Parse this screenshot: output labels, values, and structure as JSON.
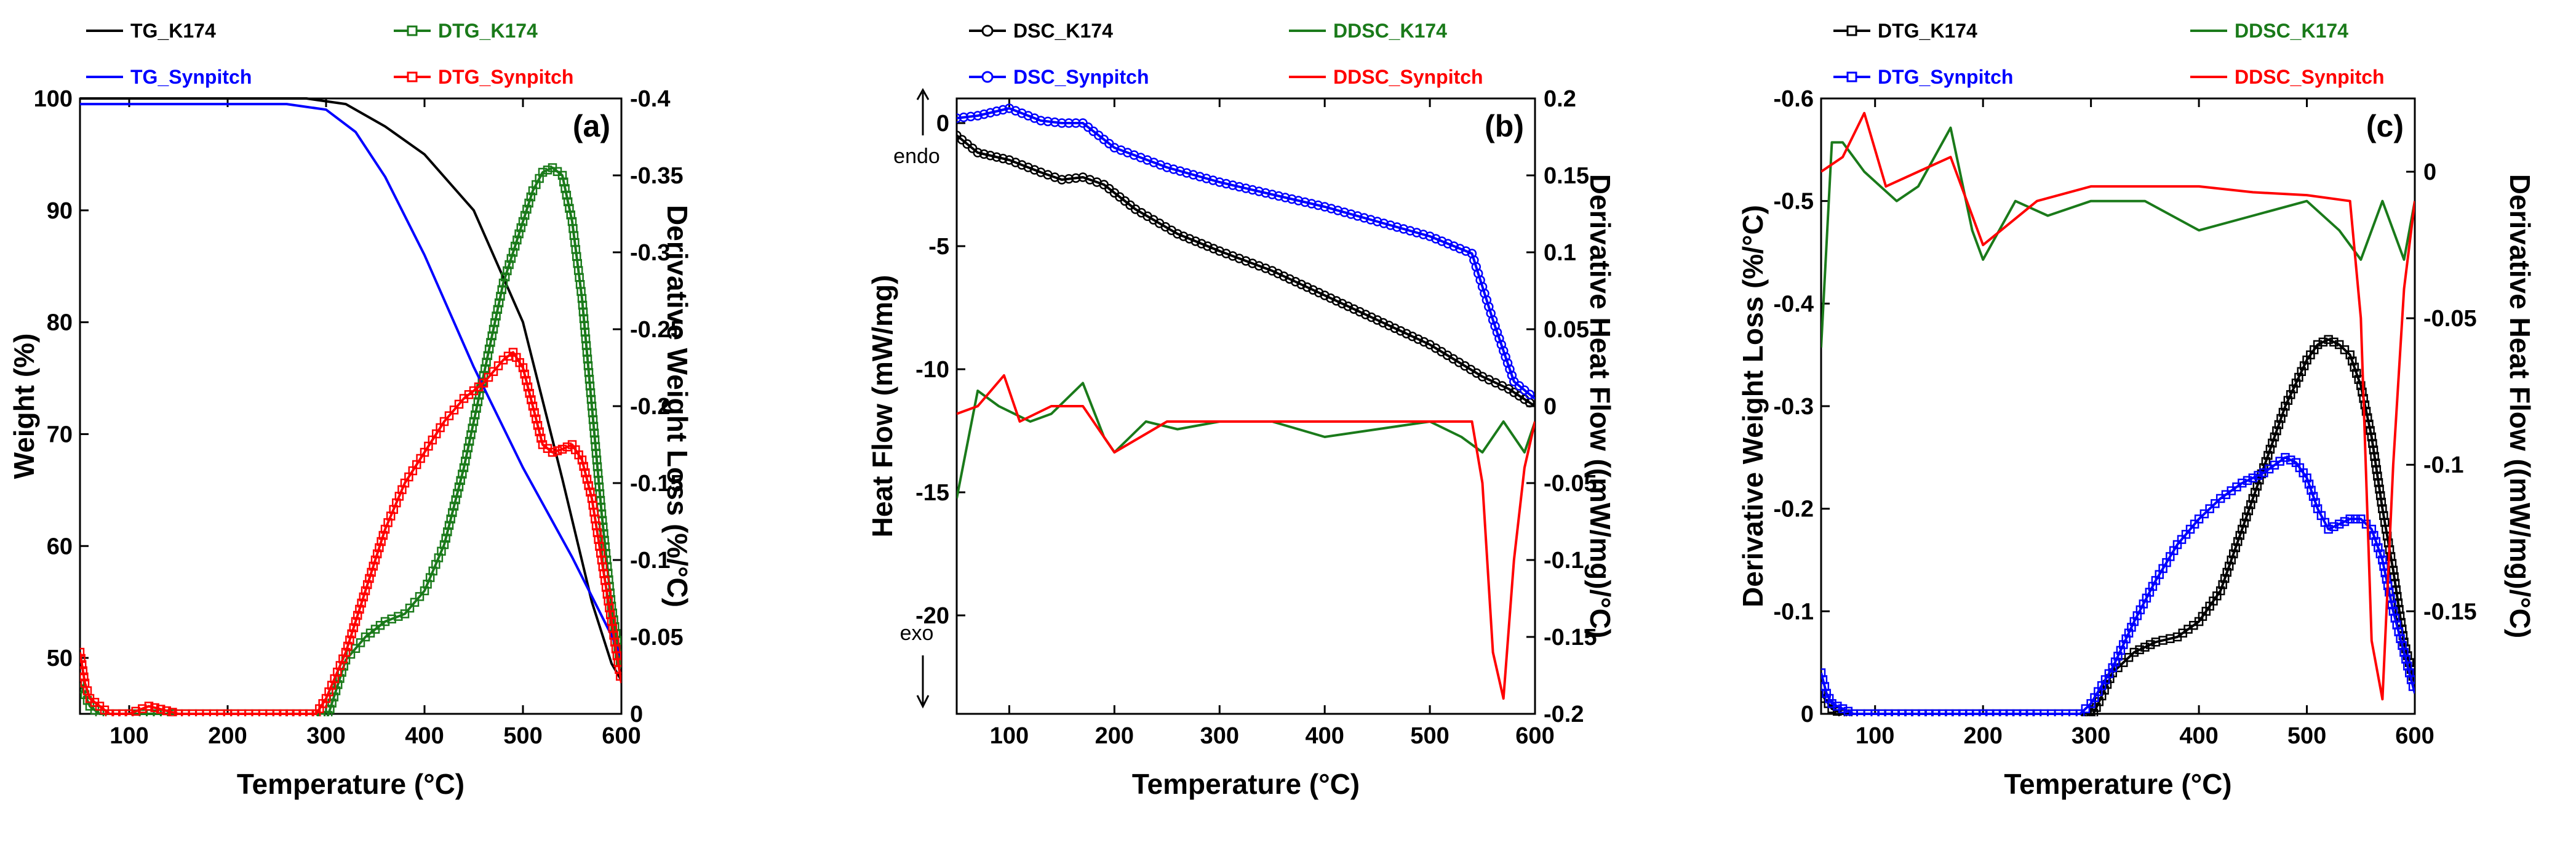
{
  "chart_data": [
    {
      "id": "a",
      "type": "line",
      "panel_label": "(a)",
      "xlabel": "Temperature (°C)",
      "xlim": [
        50,
        600
      ],
      "xticks": [
        100,
        200,
        300,
        400,
        500,
        600
      ],
      "left_axis": {
        "label": "Weight (%)",
        "lim": [
          45,
          100
        ],
        "ticks": [
          50,
          60,
          70,
          80,
          90,
          100
        ],
        "tick_labels": [
          "50",
          "60",
          "70",
          "80",
          "90",
          "100"
        ]
      },
      "right_axis": {
        "label": "Derivative Weight Loss (%/°C)",
        "lim": [
          0,
          -0.4
        ],
        "ticks": [
          0,
          -0.05,
          -0.1,
          -0.15,
          -0.2,
          -0.25,
          -0.3,
          -0.35,
          -0.4
        ],
        "tick_labels": [
          "0",
          "-0.05",
          "-0.1",
          "-0.15",
          "-0.2",
          "-0.25",
          "-0.3",
          "-0.35",
          "-0.4"
        ]
      },
      "series": [
        {
          "name": "TG_K174",
          "axis": "left",
          "color": "#000000",
          "marker": "none",
          "x": [
            50,
            100,
            200,
            280,
            320,
            360,
            400,
            450,
            500,
            540,
            570,
            590,
            600
          ],
          "y": [
            100,
            100,
            100,
            100,
            99.5,
            97.5,
            95,
            90,
            80,
            66,
            55,
            49.5,
            48
          ]
        },
        {
          "name": "DTG_K174",
          "axis": "right",
          "color": "#1a7a1a",
          "marker": "square",
          "x": [
            50,
            60,
            70,
            80,
            100,
            150,
            200,
            250,
            290,
            300,
            320,
            340,
            360,
            380,
            400,
            420,
            440,
            460,
            480,
            500,
            510,
            520,
            530,
            540,
            550,
            560,
            570,
            580,
            590,
            600
          ],
          "y": [
            -0.02,
            -0.005,
            0,
            0,
            0,
            0,
            0,
            0,
            0,
            0.005,
            -0.035,
            -0.05,
            -0.06,
            -0.065,
            -0.08,
            -0.11,
            -0.16,
            -0.22,
            -0.28,
            -0.32,
            -0.34,
            -0.352,
            -0.355,
            -0.35,
            -0.32,
            -0.27,
            -0.2,
            -0.13,
            -0.07,
            -0.03
          ]
        },
        {
          "name": "TG_Synpitch",
          "axis": "left",
          "color": "#0000ff",
          "marker": "none",
          "x": [
            50,
            100,
            200,
            260,
            300,
            330,
            360,
            400,
            450,
            500,
            550,
            590,
            600
          ],
          "y": [
            99.5,
            99.5,
            99.5,
            99.5,
            99,
            97,
            93,
            86,
            76,
            67,
            59,
            52,
            50
          ]
        },
        {
          "name": "DTG_Synpitch",
          "axis": "right",
          "color": "#ff0000",
          "marker": "square",
          "x": [
            50,
            55,
            60,
            70,
            80,
            100,
            120,
            150,
            200,
            250,
            290,
            300,
            320,
            340,
            360,
            380,
            400,
            420,
            440,
            460,
            480,
            490,
            500,
            510,
            520,
            530,
            540,
            550,
            560,
            570,
            580,
            590,
            600
          ],
          "y": [
            -0.04,
            -0.02,
            -0.01,
            -0.005,
            0,
            0,
            -0.005,
            0,
            0,
            0,
            0,
            -0.01,
            -0.04,
            -0.08,
            -0.12,
            -0.15,
            -0.17,
            -0.19,
            -0.205,
            -0.215,
            -0.23,
            -0.235,
            -0.225,
            -0.2,
            -0.175,
            -0.17,
            -0.172,
            -0.175,
            -0.165,
            -0.14,
            -0.1,
            -0.06,
            -0.02
          ]
        }
      ],
      "legend": [
        "TG_K174",
        "DTG_K174",
        "TG_Synpitch",
        "DTG_Synpitch"
      ],
      "legend_placement": "top"
    },
    {
      "id": "b",
      "type": "line",
      "panel_label": "(b)",
      "xlabel": "Temperature (°C)",
      "xlim": [
        50,
        600
      ],
      "xticks": [
        100,
        200,
        300,
        400,
        500,
        600
      ],
      "left_axis": {
        "label": "Heat Flow (mW/mg)",
        "lim": [
          -24,
          1
        ],
        "ticks": [
          0,
          -5,
          -10,
          -15,
          -20
        ],
        "tick_labels": [
          "0",
          "-5",
          "-10",
          "-15",
          "-20"
        ]
      },
      "right_axis": {
        "label": "Derivative Heat Flow ((mW/mg)/°C)",
        "lim": [
          -0.2,
          0.2
        ],
        "ticks": [
          0.2,
          0.15,
          0.1,
          0.05,
          0,
          -0.05,
          -0.1,
          -0.15,
          -0.2
        ],
        "tick_labels": [
          "0.2",
          "0.15",
          "0.1",
          "0.05",
          "0",
          "-0.05",
          "-0.1",
          "-0.15",
          "-0.2"
        ]
      },
      "annotations": [
        "endo",
        "exo"
      ],
      "series": [
        {
          "name": "DSC_K174",
          "axis": "left",
          "color": "#000000",
          "marker": "circle",
          "x": [
            50,
            70,
            100,
            130,
            150,
            170,
            190,
            220,
            260,
            300,
            350,
            400,
            450,
            500,
            550,
            575,
            600
          ],
          "y": [
            -0.5,
            -1.2,
            -1.5,
            -2,
            -2.3,
            -2.2,
            -2.5,
            -3.5,
            -4.5,
            -5.2,
            -6,
            -7,
            -8,
            -9,
            -10.3,
            -10.8,
            -11.5
          ]
        },
        {
          "name": "DSC_Synpitch",
          "axis": "left",
          "color": "#0000ff",
          "marker": "circle",
          "x": [
            50,
            70,
            100,
            130,
            150,
            170,
            200,
            250,
            300,
            350,
            400,
            450,
            500,
            540,
            560,
            580,
            600
          ],
          "y": [
            0.2,
            0.3,
            0.6,
            0.1,
            0,
            0,
            -1,
            -1.8,
            -2.4,
            -2.9,
            -3.4,
            -4,
            -4.6,
            -5.3,
            -8,
            -10.5,
            -11.2
          ]
        },
        {
          "name": "DDSC_K174",
          "axis": "right",
          "color": "#1a7a1a",
          "marker": "none",
          "x": [
            50,
            70,
            90,
            120,
            140,
            170,
            190,
            200,
            230,
            260,
            300,
            350,
            400,
            450,
            500,
            530,
            550,
            570,
            590,
            600
          ],
          "y": [
            -0.06,
            0.01,
            0,
            -0.01,
            -0.005,
            0.015,
            -0.02,
            -0.03,
            -0.01,
            -0.015,
            -0.01,
            -0.01,
            -0.02,
            -0.015,
            -0.01,
            -0.02,
            -0.03,
            -0.01,
            -0.03,
            -0.01
          ]
        },
        {
          "name": "DDSC_Synpitch",
          "axis": "right",
          "color": "#ff0000",
          "marker": "none",
          "x": [
            50,
            70,
            95,
            110,
            140,
            170,
            200,
            250,
            300,
            350,
            400,
            450,
            500,
            540,
            550,
            560,
            570,
            580,
            590,
            600
          ],
          "y": [
            -0.005,
            0,
            0.02,
            -0.01,
            0,
            0.0,
            -0.03,
            -0.01,
            -0.01,
            -0.01,
            -0.01,
            -0.01,
            -0.01,
            -0.01,
            -0.05,
            -0.16,
            -0.19,
            -0.1,
            -0.04,
            -0.01
          ]
        }
      ],
      "legend": [
        "DSC_K174",
        "DDSC_K174",
        "DSC_Synpitch",
        "DDSC_Synpitch"
      ],
      "legend_placement": "top"
    },
    {
      "id": "c",
      "type": "line",
      "panel_label": "(c)",
      "xlabel": "Temperature (°C)",
      "xlim": [
        50,
        600
      ],
      "xticks": [
        100,
        200,
        300,
        400,
        500,
        600
      ],
      "left_axis": {
        "label": "Derivative Weight Loss (%/°C)",
        "lim": [
          0,
          -0.6
        ],
        "ticks": [
          0,
          -0.1,
          -0.2,
          -0.3,
          -0.4,
          -0.5,
          -0.6
        ],
        "tick_labels": [
          "0",
          "-0.1",
          "-0.2",
          "-0.3",
          "-0.4",
          "-0.5",
          "-0.6"
        ]
      },
      "right_axis": {
        "label": "Derivative Heat Flow ((mW/mg)/°C)",
        "lim": [
          -0.185,
          0.025
        ],
        "ticks": [
          0,
          -0.05,
          -0.1,
          -0.15
        ],
        "tick_labels": [
          "0",
          "-0.05",
          "-0.1",
          "-0.15"
        ]
      },
      "series": [
        {
          "name": "DTG_K174",
          "axis": "left",
          "color": "#000000",
          "marker": "square",
          "x": [
            50,
            60,
            70,
            80,
            100,
            150,
            200,
            250,
            290,
            300,
            320,
            340,
            360,
            380,
            400,
            420,
            440,
            460,
            480,
            500,
            510,
            520,
            530,
            540,
            550,
            560,
            570,
            580,
            590,
            600
          ],
          "y": [
            -0.02,
            -0.005,
            0,
            0,
            0,
            0,
            0,
            0,
            0,
            0.005,
            -0.04,
            -0.06,
            -0.07,
            -0.075,
            -0.09,
            -0.12,
            -0.18,
            -0.24,
            -0.3,
            -0.345,
            -0.36,
            -0.365,
            -0.36,
            -0.35,
            -0.32,
            -0.27,
            -0.2,
            -0.14,
            -0.07,
            -0.03
          ]
        },
        {
          "name": "DTG_Synpitch",
          "axis": "left",
          "color": "#0000ff",
          "marker": "square",
          "x": [
            50,
            55,
            60,
            70,
            80,
            100,
            150,
            200,
            250,
            290,
            300,
            320,
            340,
            360,
            380,
            400,
            420,
            440,
            460,
            480,
            490,
            500,
            510,
            520,
            530,
            540,
            550,
            560,
            570,
            580,
            590,
            600
          ],
          "y": [
            -0.04,
            -0.02,
            -0.01,
            -0.005,
            0,
            0,
            0,
            0,
            0,
            0,
            -0.01,
            -0.045,
            -0.09,
            -0.13,
            -0.165,
            -0.19,
            -0.21,
            -0.225,
            -0.235,
            -0.25,
            -0.245,
            -0.23,
            -0.2,
            -0.18,
            -0.185,
            -0.19,
            -0.19,
            -0.18,
            -0.15,
            -0.1,
            -0.06,
            -0.02
          ]
        },
        {
          "name": "DDSC_K174",
          "axis": "right",
          "color": "#1a7a1a",
          "marker": "none",
          "x": [
            50,
            60,
            70,
            90,
            120,
            140,
            170,
            190,
            200,
            230,
            260,
            300,
            350,
            400,
            450,
            500,
            530,
            550,
            570,
            590,
            600
          ],
          "y": [
            -0.06,
            0.01,
            0.01,
            0,
            -0.01,
            -0.005,
            0.015,
            -0.02,
            -0.03,
            -0.01,
            -0.015,
            -0.01,
            -0.01,
            -0.02,
            -0.015,
            -0.01,
            -0.02,
            -0.03,
            -0.01,
            -0.03,
            -0.01
          ]
        },
        {
          "name": "DDSC_Synpitch",
          "axis": "right",
          "color": "#ff0000",
          "marker": "none",
          "x": [
            50,
            70,
            90,
            110,
            140,
            170,
            200,
            250,
            300,
            350,
            400,
            450,
            500,
            540,
            550,
            560,
            570,
            580,
            590,
            600
          ],
          "y": [
            0,
            0.005,
            0.02,
            -0.005,
            0,
            0.005,
            -0.025,
            -0.01,
            -0.005,
            -0.005,
            -0.005,
            -0.007,
            -0.008,
            -0.01,
            -0.05,
            -0.16,
            -0.18,
            -0.1,
            -0.04,
            -0.01
          ]
        }
      ],
      "legend": [
        "DTG_K174",
        "DDSC_K174",
        "DTG_Synpitch",
        "DDSC_Synpitch"
      ],
      "legend_placement": "top"
    }
  ]
}
